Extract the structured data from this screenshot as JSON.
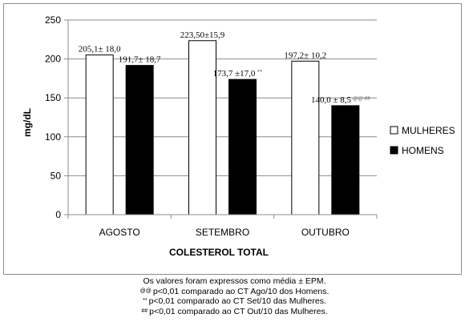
{
  "chart_data": {
    "type": "bar",
    "title": "",
    "xlabel": "COLESTEROL TOTAL",
    "ylabel": "mg/dL",
    "ylim": [
      0,
      250
    ],
    "yticks": [
      "0",
      "50",
      "100",
      "150",
      "200",
      "250"
    ],
    "grid": true,
    "legend_position": "right",
    "categories": [
      "AGOSTO",
      "SETEMBRO",
      "OUTUBRO"
    ],
    "series": [
      {
        "name": "MULHERES",
        "color": "#ffffff",
        "values": [
          205.1,
          223.5,
          197.2
        ],
        "labels": [
          "205,1± 18,0",
          "223,50±15,9",
          "197,2± 10,2"
        ],
        "label_marks": [
          "",
          "",
          ""
        ]
      },
      {
        "name": "HOMENS",
        "color": "#000000",
        "values": [
          191.7,
          173.7,
          140.0
        ],
        "labels": [
          "191,7± 18,7",
          "173,7 ±17,0",
          "140,0 ± 8,5"
        ],
        "label_marks": [
          "",
          "**",
          "@@ ##"
        ]
      }
    ]
  },
  "notes": {
    "line1": "Os valores foram expressos como média ± EPM.",
    "line2_symbol": "@@",
    "line2_text": "p<0,01 comparado ao CT Ago/10 dos Homens.",
    "line3_symbol": "**",
    "line3_text": "p<0,01 comparado ao CT Set/10 das Mulheres.",
    "line4_symbol": "##",
    "line4_text": "p<0,01 comparado ao CT Out/10 das Mulheres."
  }
}
